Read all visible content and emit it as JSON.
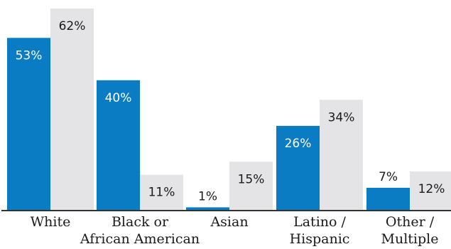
{
  "chart_data": {
    "type": "bar",
    "categories": [
      [
        "White"
      ],
      [
        "Black or",
        "African American"
      ],
      [
        "Asian"
      ],
      [
        "Latino /",
        "Hispanic"
      ],
      [
        "Other /",
        "Multiple"
      ]
    ],
    "series": [
      {
        "values": [
          53,
          40,
          1,
          26,
          7
        ],
        "color": "#0a7cc4"
      },
      {
        "values": [
          62,
          11,
          15,
          34,
          12
        ],
        "color": "#e4e3e5"
      }
    ],
    "value_suffix": "%",
    "ylim": [
      0,
      62
    ],
    "grid": false,
    "legend": "none",
    "title": "",
    "xlabel": "",
    "ylabel": ""
  }
}
